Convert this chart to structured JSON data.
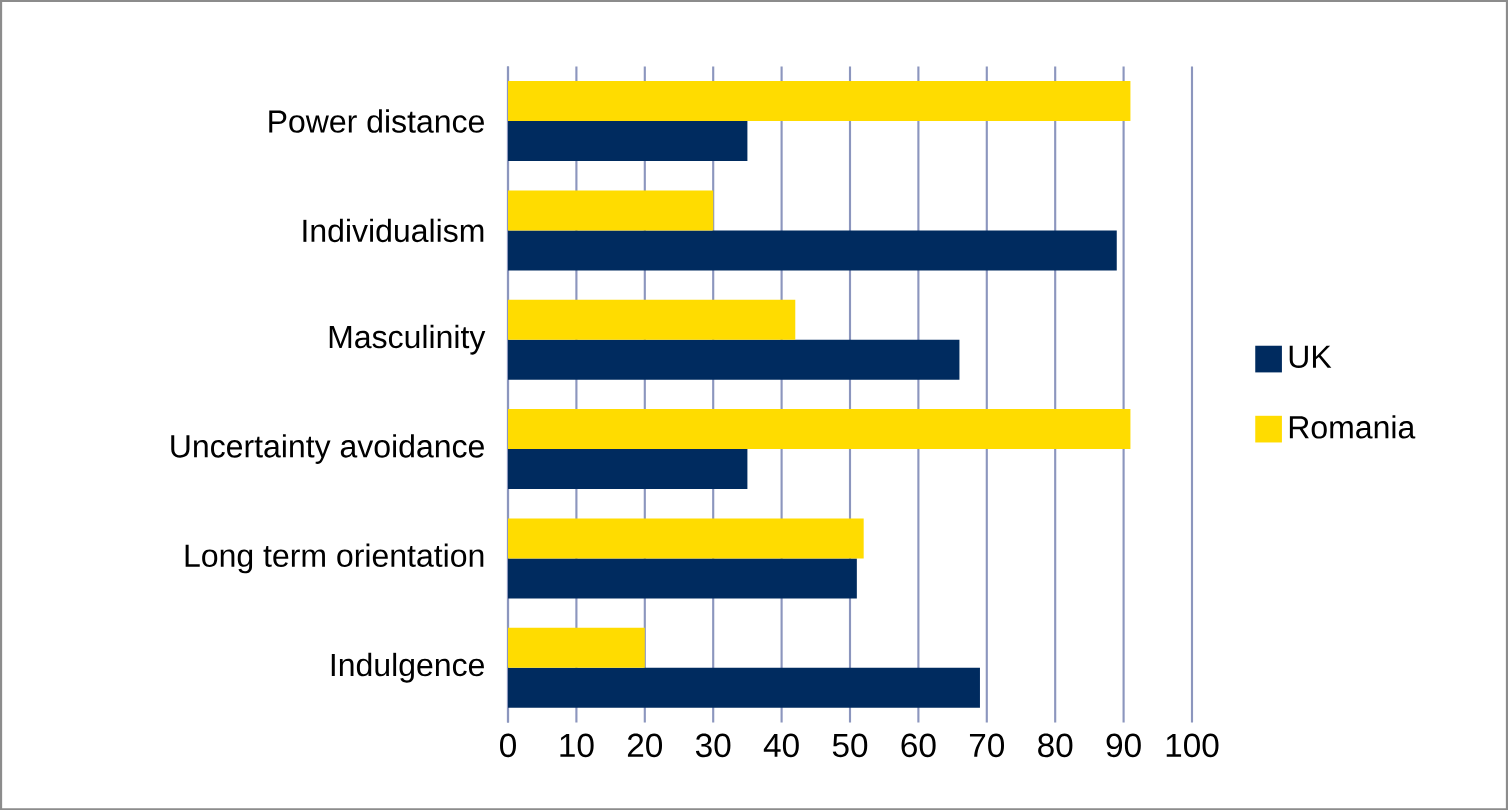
{
  "chart_data": {
    "type": "bar",
    "orientation": "horizontal",
    "categories": [
      "Power distance",
      "Individualism",
      "Masculinity",
      "Uncertainty avoidance",
      "Long term orientation",
      "Indulgence"
    ],
    "series": [
      {
        "name": "UK",
        "color": "#002b5f",
        "values": [
          35,
          89,
          66,
          35,
          51,
          69
        ]
      },
      {
        "name": "Romania",
        "color": "#ffdc00",
        "values": [
          91,
          30,
          42,
          91,
          52,
          20
        ]
      }
    ],
    "xlim": [
      0,
      100
    ],
    "xticks": [
      0,
      10,
      20,
      30,
      40,
      50,
      60,
      70,
      80,
      90,
      100
    ],
    "grid": "x",
    "legend": "right"
  }
}
